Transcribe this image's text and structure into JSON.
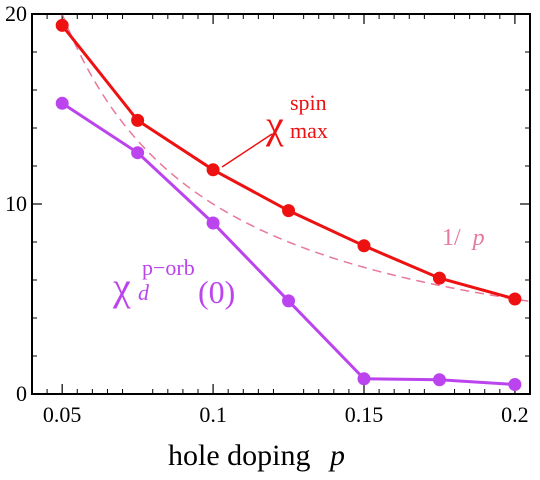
{
  "chart_data": {
    "type": "line",
    "title": "",
    "xlabel": "hole doping",
    "xlabel_var": "p",
    "ylabel": "",
    "xlim": [
      0.04,
      0.205
    ],
    "ylim": [
      0,
      20
    ],
    "x_ticks": [
      {
        "v": 0.05,
        "label": "0.05"
      },
      {
        "v": 0.1,
        "label": "0.1"
      },
      {
        "v": 0.15,
        "label": "0.15"
      },
      {
        "v": 0.2,
        "label": "0.2"
      }
    ],
    "y_ticks": [
      {
        "v": 0,
        "label": "0"
      },
      {
        "v": 10,
        "label": "10"
      },
      {
        "v": 20,
        "label": "20"
      }
    ],
    "grid": false,
    "legend": "none",
    "series": [
      {
        "id": "chi-spin-max",
        "color": "#ee1111",
        "x": [
          0.05,
          0.075,
          0.1,
          0.125,
          0.15,
          0.175,
          0.2
        ],
        "y": [
          19.4,
          14.4,
          11.8,
          9.65,
          7.8,
          6.1,
          5.0
        ]
      },
      {
        "id": "chi-d-p-orb",
        "color": "#bb44ee",
        "x": [
          0.05,
          0.075,
          0.1,
          0.125,
          0.15,
          0.175,
          0.2
        ],
        "y": [
          15.3,
          12.7,
          9.0,
          4.9,
          0.8,
          0.75,
          0.5
        ]
      }
    ],
    "reference_curve": {
      "id": "one-over-p",
      "color": "#e8799a",
      "style": "dashed",
      "formula": "1/p"
    },
    "annotations": {
      "spin": {
        "symbol": "χ",
        "sup": "spin",
        "sub": "max",
        "color": "#ee1111"
      },
      "porb": {
        "symbol": "χ",
        "sub": "d",
        "sup": "p−orb",
        "arg": "(0)",
        "color": "#bb44ee"
      },
      "ref": {
        "num": "1/",
        "var": "p",
        "color": "#e8799a"
      }
    }
  }
}
